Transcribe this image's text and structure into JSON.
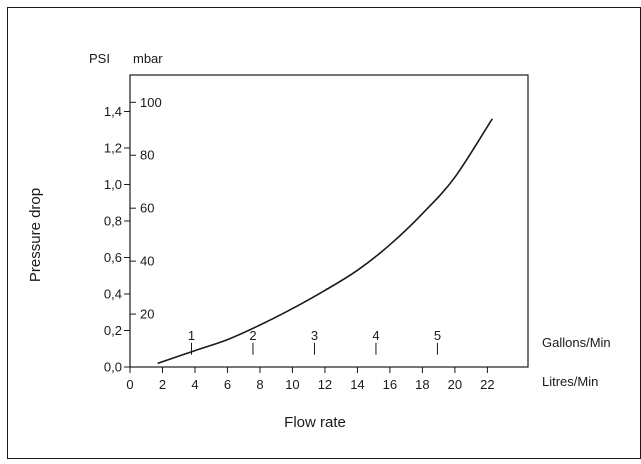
{
  "chart_data": {
    "type": "line",
    "title": "",
    "xlabel": "Flow rate",
    "ylabel": "Pressure drop",
    "y_left_unit": "PSI",
    "y_right_unit": "mbar",
    "x_bottom_unit": "Litres/Min",
    "x_top_unit": "Gallons/Min",
    "xlim": [
      0,
      24.5
    ],
    "ylim": [
      0,
      1.6
    ],
    "x_ticks": [
      "0",
      "2",
      "4",
      "6",
      "8",
      "10",
      "12",
      "14",
      "16",
      "18",
      "20",
      "22"
    ],
    "y_ticks": [
      "0,0",
      "0,2",
      "0,4",
      "0,6",
      "0,8",
      "1,0",
      "1,2",
      "1,4"
    ],
    "mbar_ticks": [
      "20",
      "40",
      "60",
      "80",
      "100"
    ],
    "gallon_ticks": [
      "1",
      "2",
      "3",
      "4",
      "5"
    ],
    "series": [
      {
        "x": [
          1.7,
          4,
          6,
          8,
          10,
          12,
          14,
          16,
          18,
          20,
          22.3
        ],
        "y": [
          0.02,
          0.09,
          0.15,
          0.23,
          0.32,
          0.42,
          0.53,
          0.67,
          0.84,
          1.04,
          1.36
        ]
      }
    ]
  }
}
